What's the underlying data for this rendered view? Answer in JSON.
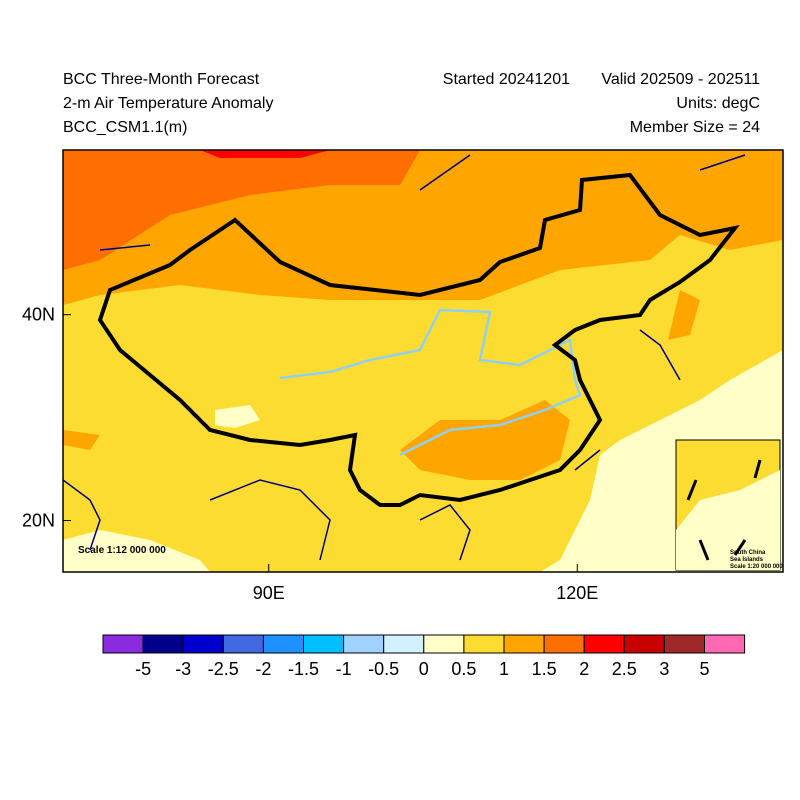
{
  "header": {
    "title": "BCC Three-Month Forecast",
    "subtitle": "2-m Air Temperature Anomaly",
    "model": "BCC_CSM1.1(m)",
    "started": "Started 20241201",
    "valid": "Valid 202509 - 202511",
    "units": "Units: degC",
    "members": "Member Size = 24"
  },
  "map": {
    "xlim": [
      70,
      140
    ],
    "ylim": [
      15,
      56
    ],
    "xticks": [
      {
        "value": 90,
        "label": "90E"
      },
      {
        "value": 120,
        "label": "120E"
      }
    ],
    "yticks": [
      {
        "value": 40,
        "label": "40N"
      },
      {
        "value": 20,
        "label": "20N"
      }
    ],
    "scale": "Scale 1:12 000 000",
    "inset": {
      "name_line1": "South China",
      "name_line2": "Sea Islands",
      "scale": "Scale 1:20 000 000"
    }
  },
  "colorbar": {
    "colors": [
      "#8a2be2",
      "#00008b",
      "#0000cd",
      "#4169e1",
      "#1e90ff",
      "#00bfff",
      "#a0d2ff",
      "#d2f0ff",
      "#ffffc8",
      "#fddc32",
      "#fea500",
      "#fe6e00",
      "#fe0000",
      "#c80000",
      "#a02828",
      "#ff69b4"
    ],
    "levels": [
      -5,
      -3,
      -2.5,
      -2,
      -1.5,
      -1,
      -0.5,
      0,
      0.5,
      1,
      1.5,
      2,
      2.5,
      3,
      5
    ]
  }
}
